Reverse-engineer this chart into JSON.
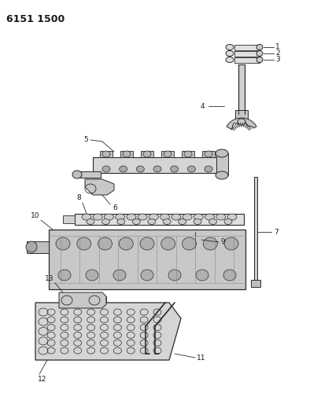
{
  "title": "6151 1500",
  "bg_color": "#ffffff",
  "lc": "#2a2a2a",
  "figsize": [
    4.08,
    5.33
  ],
  "dpi": 100,
  "xlim": [
    0,
    408
  ],
  "ylim": [
    0,
    533
  ]
}
